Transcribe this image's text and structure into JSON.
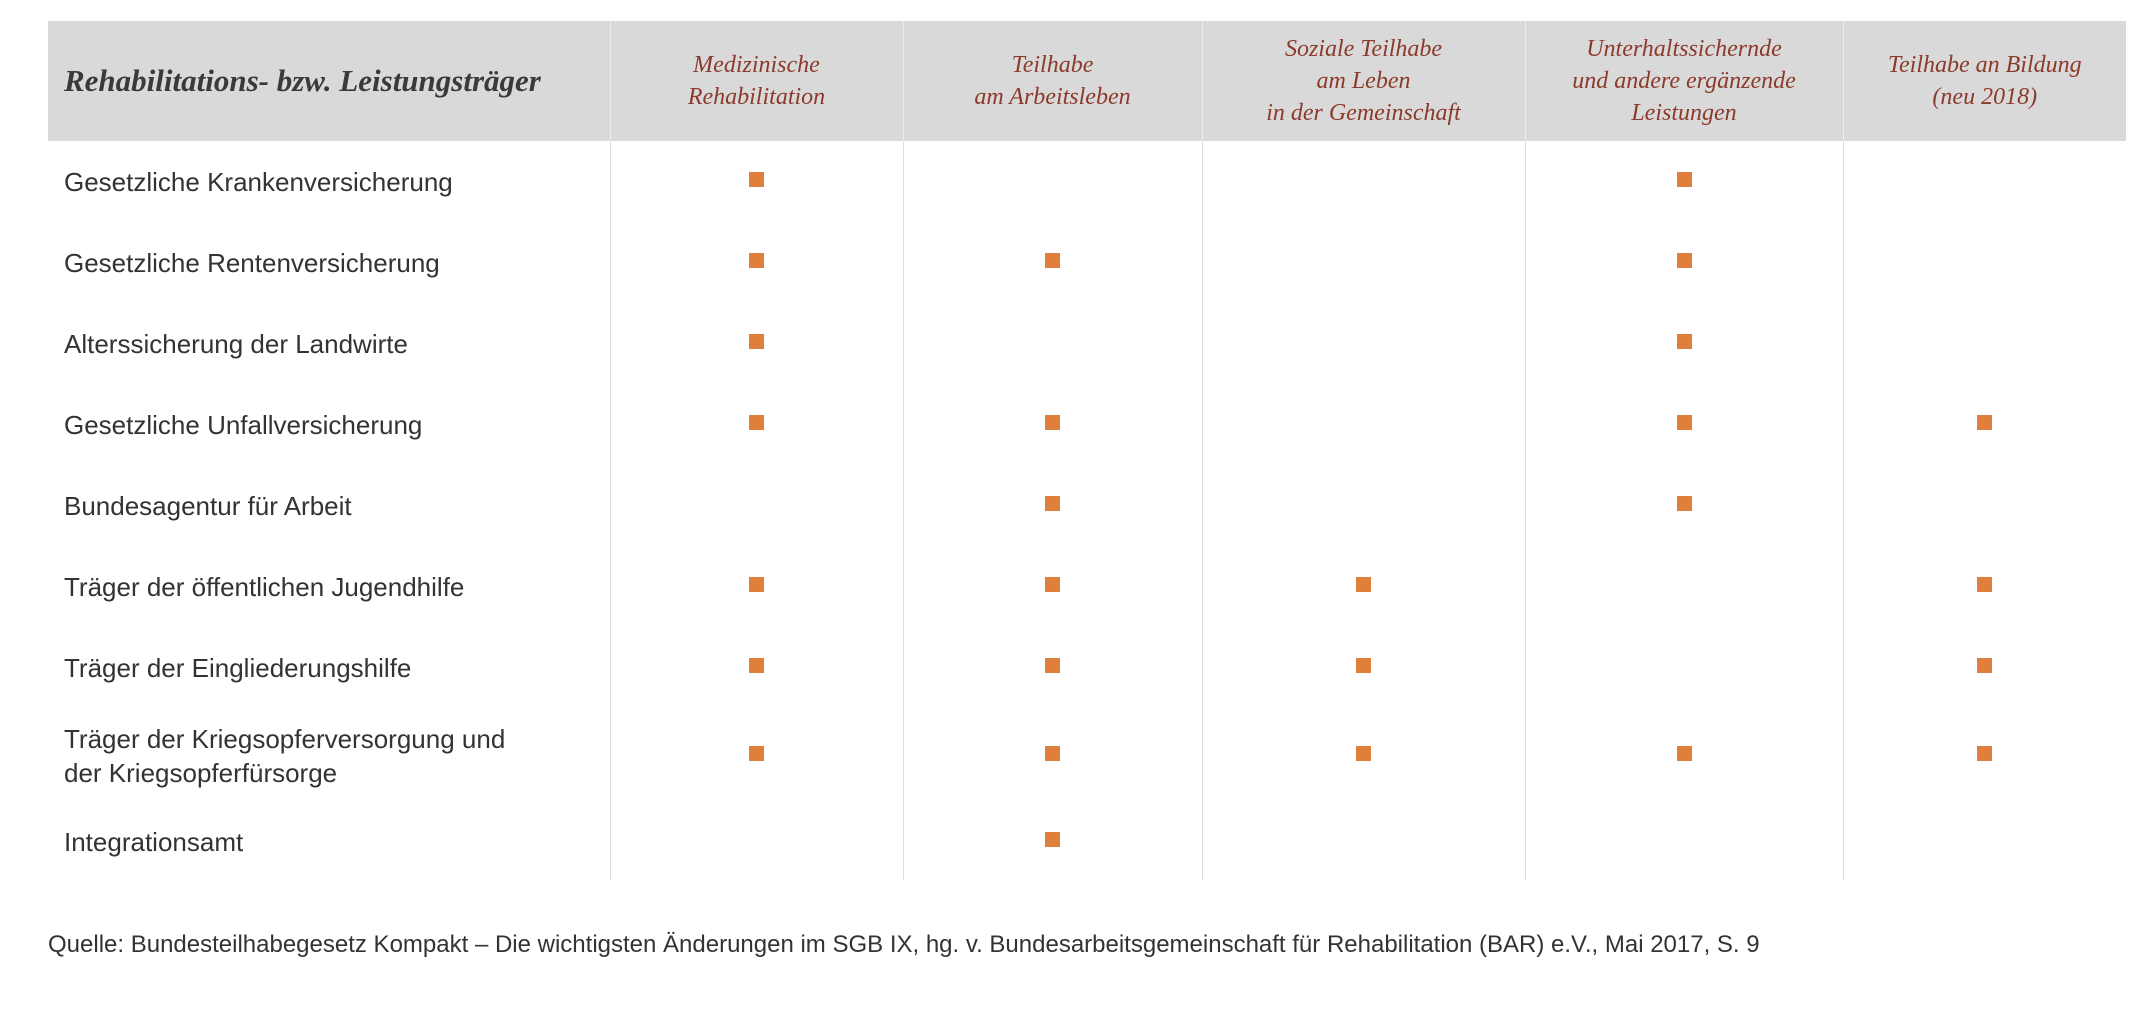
{
  "table": {
    "header_first": "Rehabilitations- bzw. Leistungsträger",
    "columns": [
      "Medizinische\nRehabilitation",
      "Teilhabe\nam Arbeitsleben",
      "Soziale Teilhabe\nam Leben\nin der Gemeinschaft",
      "Unterhaltssichernde\nund andere ergänzende\nLeistungen",
      "Teilhabe an Bildung\n(neu 2018)"
    ],
    "mark_color": "#e07f3c",
    "header_text_color": "#8b3a2b",
    "header_bg": "#d9d9d9",
    "rows": [
      {
        "label": "Gesetzliche Krankenversicherung",
        "marks": [
          true,
          false,
          false,
          true,
          false
        ]
      },
      {
        "label": "Gesetzliche Rentenversicherung",
        "marks": [
          true,
          true,
          false,
          true,
          false
        ]
      },
      {
        "label": "Alterssicherung der Landwirte",
        "marks": [
          true,
          false,
          false,
          true,
          false
        ]
      },
      {
        "label": "Gesetzliche Unfallversicherung",
        "marks": [
          true,
          true,
          false,
          true,
          true
        ]
      },
      {
        "label": "Bundesagentur für Arbeit",
        "marks": [
          false,
          true,
          false,
          true,
          false
        ]
      },
      {
        "label": "Träger der öffentlichen Jugendhilfe",
        "marks": [
          true,
          true,
          true,
          false,
          true
        ]
      },
      {
        "label": "Träger der Eingliederungshilfe",
        "marks": [
          true,
          true,
          true,
          false,
          true
        ]
      },
      {
        "label": "Träger der Kriegsopferversorgung und\nder Kriegsopferfürsorge",
        "marks": [
          true,
          true,
          true,
          true,
          true
        ]
      },
      {
        "label": "Integrationsamt",
        "marks": [
          false,
          true,
          false,
          false,
          false
        ]
      }
    ]
  },
  "source": "Quelle: Bundesteilhabegesetz Kompakt – Die wichtigsten Änderungen im SGB IX, hg. v. Bundesarbeitsgemeinschaft für Rehabilitation (BAR) e.V., Mai 2017, S. 9"
}
